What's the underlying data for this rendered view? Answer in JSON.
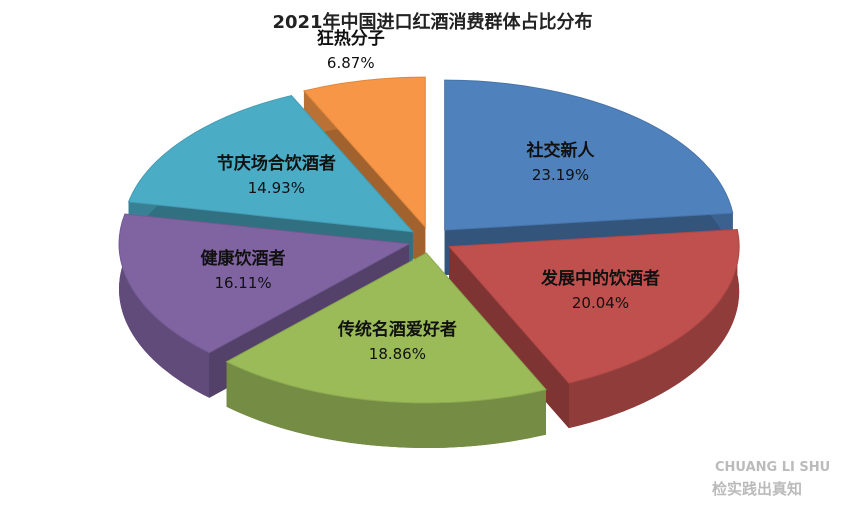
{
  "chart_data": {
    "type": "pie3d",
    "title": "2021年中国进口红酒消费群体占比分布",
    "categories": [
      "社交新人",
      "发展中的饮酒者",
      "传统名酒爱好者",
      "健康饮酒者",
      "节庆场合饮酒者",
      "狂热分子"
    ],
    "values": [
      23.19,
      20.04,
      18.86,
      16.11,
      14.93,
      6.87
    ],
    "value_labels": [
      "23.19%",
      "20.04%",
      "18.86%",
      "16.11%",
      "14.93%",
      "6.87%"
    ],
    "colors": [
      "#4f81bd",
      "#c0504d",
      "#9bbb59",
      "#8064a2",
      "#4bacc6",
      "#f79646"
    ],
    "watermark": [
      "CHUANG LI SHU",
      "检实践出真知"
    ]
  }
}
